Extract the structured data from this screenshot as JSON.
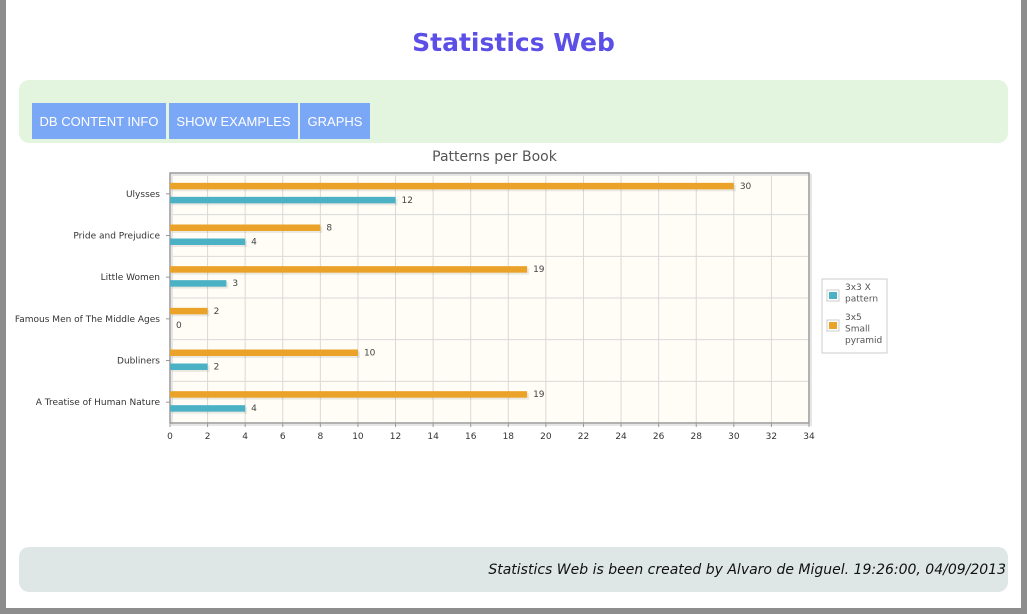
{
  "page": {
    "title": "Statistics Web"
  },
  "nav": {
    "items": [
      {
        "label": "DB CONTENT INFO"
      },
      {
        "label": "SHOW EXAMPLES"
      },
      {
        "label": "GRAPHS"
      }
    ]
  },
  "footer": {
    "text": "Statistics Web is been created by Alvaro de Miguel. 19:26:00, 04/09/2013"
  },
  "colors": {
    "accent_title": "#5b4fe8",
    "nav_button": "#7ba7f7",
    "series_teal": "#4bb2c5",
    "series_orange": "#eaa228"
  },
  "chart_data": {
    "type": "bar",
    "orientation": "horizontal",
    "title": "Patterns per Book",
    "categories": [
      "Ulysses",
      "Pride and Prejudice",
      "Little Women",
      "Famous Men of The Middle Ages",
      "Dubliners",
      "A Treatise of Human Nature"
    ],
    "series": [
      {
        "name": "3x5 Small pyramid",
        "color": "#eaa228",
        "values": [
          30,
          8,
          19,
          2,
          10,
          19
        ]
      },
      {
        "name": "3x3 X pattern",
        "color": "#4bb2c5",
        "values": [
          12,
          4,
          3,
          0,
          2,
          4
        ]
      }
    ],
    "legend_order": [
      "3x3 X pattern",
      "3x5 Small pyramid"
    ],
    "xlim": [
      0,
      34
    ],
    "xticks": [
      0,
      2,
      4,
      6,
      8,
      10,
      12,
      14,
      16,
      18,
      20,
      22,
      24,
      26,
      28,
      30,
      32,
      34
    ],
    "grid": true,
    "legend_position": "right",
    "data_labels": true
  }
}
